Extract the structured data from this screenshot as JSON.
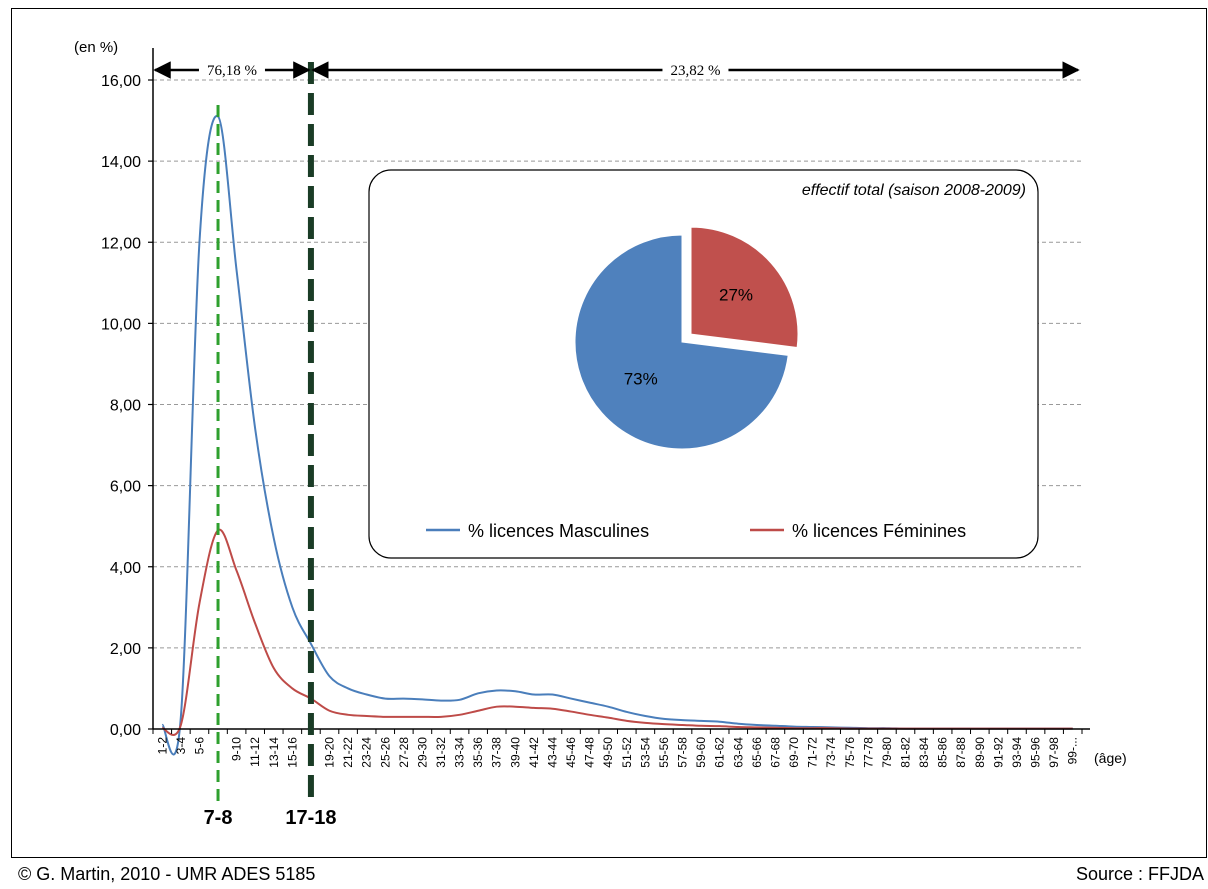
{
  "chart_data": {
    "type": "line",
    "ylabel": "(en %)",
    "xlabel": "(âge)",
    "ylim": [
      0,
      16
    ],
    "yticks": [
      "0,00",
      "2,00",
      "4,00",
      "6,00",
      "8,00",
      "10,00",
      "12,00",
      "14,00",
      "16,00"
    ],
    "grid": "horizontal-dashed",
    "categories": [
      "1-2",
      "3-4",
      "5-6",
      "7-8",
      "9-10",
      "11-12",
      "13-14",
      "15-16",
      "17-18",
      "19-20",
      "21-22",
      "23-24",
      "25-26",
      "27-28",
      "29-30",
      "31-32",
      "33-34",
      "35-36",
      "37-38",
      "39-40",
      "41-42",
      "43-44",
      "45-46",
      "47-48",
      "49-50",
      "51-52",
      "53-54",
      "55-56",
      "57-58",
      "59-60",
      "61-62",
      "63-64",
      "65-66",
      "67-68",
      "69-70",
      "71-72",
      "73-74",
      "75-76",
      "77-78",
      "79-80",
      "81-82",
      "83-84",
      "85-86",
      "87-88",
      "89-90",
      "91-92",
      "93-94",
      "95-96",
      "97-98",
      "99-..."
    ],
    "tick_labels": [
      "1-2",
      "3-4",
      "5-6",
      "9-10",
      "11-12",
      "13-14",
      "15-16",
      "19-20",
      "21-22",
      "23-24",
      "25-26",
      "27-28",
      "29-30",
      "31-32",
      "33-34",
      "35-36",
      "37-38",
      "39-40",
      "41-42",
      "43-44",
      "45-46",
      "47-48",
      "49-50",
      "51-52",
      "53-54",
      "55-56",
      "57-58",
      "59-60",
      "61-62",
      "63-64",
      "65-66",
      "67-68",
      "69-70",
      "71-72",
      "73-74",
      "75-76",
      "77-78",
      "79-80",
      "81-82",
      "83-84",
      "85-86",
      "87-88",
      "89-90",
      "91-92",
      "93-94",
      "95-96",
      "97-98",
      "99-..."
    ],
    "series": [
      {
        "name": "% licences Masculines",
        "color": "#4a7ebb",
        "values": [
          0.1,
          0.3,
          12.0,
          15.1,
          11.3,
          7.4,
          4.7,
          3.0,
          2.1,
          1.3,
          1.0,
          0.85,
          0.75,
          0.75,
          0.73,
          0.7,
          0.72,
          0.88,
          0.95,
          0.93,
          0.85,
          0.85,
          0.75,
          0.65,
          0.55,
          0.42,
          0.32,
          0.25,
          0.22,
          0.2,
          0.18,
          0.13,
          0.1,
          0.08,
          0.06,
          0.05,
          0.04,
          0.03,
          0.02,
          0.02,
          0.01,
          0.01,
          0.01,
          0.01,
          0.01,
          0.01,
          0.01,
          0.01,
          0.01,
          0.01
        ]
      },
      {
        "name": "% licences Féminines",
        "color": "#be4b48",
        "values": [
          0.02,
          0.1,
          3.1,
          4.9,
          3.9,
          2.6,
          1.5,
          1.0,
          0.75,
          0.45,
          0.35,
          0.32,
          0.3,
          0.3,
          0.3,
          0.3,
          0.35,
          0.45,
          0.55,
          0.55,
          0.52,
          0.5,
          0.43,
          0.35,
          0.28,
          0.2,
          0.15,
          0.12,
          0.1,
          0.08,
          0.07,
          0.05,
          0.04,
          0.03,
          0.02,
          0.02,
          0.02,
          0.01,
          0.01,
          0.01,
          0.01,
          0.01,
          0.01,
          0.01,
          0.01,
          0.01,
          0.01,
          0.01,
          0.01,
          0.01
        ]
      }
    ],
    "markers": [
      {
        "category": "7-8",
        "label": "7-8",
        "color": "#2ea02e"
      },
      {
        "category": "17-18",
        "label": "17-18",
        "color": "#1a3c26"
      }
    ],
    "ranges": [
      {
        "from": "1-2",
        "to": "17-18",
        "label": "76,18 %"
      },
      {
        "from": "17-18",
        "to": "99-...",
        "label": "23,82 %"
      }
    ],
    "inset": {
      "type": "pie",
      "title": "effectif total (saison 2008-2009)",
      "slices": [
        {
          "label": "% licences Masculines",
          "value": 73,
          "text": "73%",
          "color": "#4f81bd"
        },
        {
          "label": "% licences Féminines",
          "value": 27,
          "text": "27%",
          "color": "#c0504d",
          "exploded": true
        }
      ]
    }
  },
  "footer": {
    "credit": "© G. Martin, 2010 - UMR ADES 5185",
    "source": "Source : FFJDA"
  }
}
